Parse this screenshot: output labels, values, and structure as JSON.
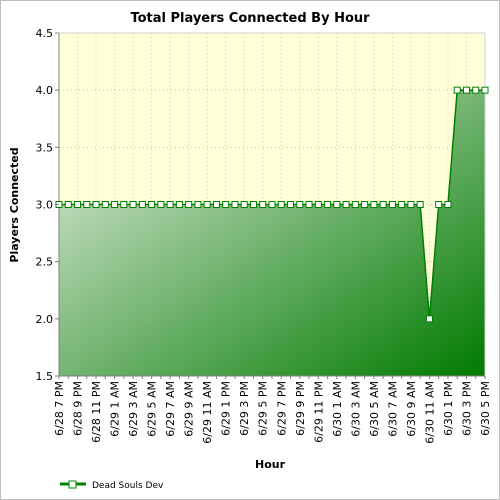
{
  "chart_data": {
    "type": "area",
    "title": "Total Players Connected By Hour",
    "xlabel": "Hour",
    "ylabel": "Players Connected",
    "ylim": [
      1.5,
      4.5
    ],
    "yticks": [
      "1.5",
      "2.0",
      "2.5",
      "3.0",
      "3.5",
      "4.0",
      "4.5"
    ],
    "x": [
      "6/28 7 PM",
      "6/28 8 PM",
      "6/28 9 PM",
      "6/28 10 PM",
      "6/28 11 PM",
      "6/29 12 AM",
      "6/29 1 AM",
      "6/29 2 AM",
      "6/29 3 AM",
      "6/29 4 AM",
      "6/29 5 AM",
      "6/29 6 AM",
      "6/29 7 AM",
      "6/29 8 AM",
      "6/29 9 AM",
      "6/29 10 AM",
      "6/29 11 AM",
      "6/29 12 PM",
      "6/29 1 PM",
      "6/29 2 PM",
      "6/29 3 PM",
      "6/29 4 PM",
      "6/29 5 PM",
      "6/29 6 PM",
      "6/29 7 PM",
      "6/29 8 PM",
      "6/29 9 PM",
      "6/29 10 PM",
      "6/29 11 PM",
      "6/30 12 AM",
      "6/30 1 AM",
      "6/30 2 AM",
      "6/30 3 AM",
      "6/30 4 AM",
      "6/30 5 AM",
      "6/30 6 AM",
      "6/30 7 AM",
      "6/30 8 AM",
      "6/30 9 AM",
      "6/30 10 AM",
      "6/30 11 AM",
      "6/30 12 PM",
      "6/30 1 PM",
      "6/30 2 PM",
      "6/30 3 PM",
      "6/30 4 PM",
      "6/30 5 PM"
    ],
    "xtick_labels": [
      "6/28 7 PM",
      "6/28 9 PM",
      "6/28 11 PM",
      "6/29 1 AM",
      "6/29 3 AM",
      "6/29 5 AM",
      "6/29 7 AM",
      "6/29 9 AM",
      "6/29 11 AM",
      "6/29 1 PM",
      "6/29 3 PM",
      "6/29 5 PM",
      "6/29 7 PM",
      "6/29 9 PM",
      "6/29 11 PM",
      "6/30 1 AM",
      "6/30 3 AM",
      "6/30 5 AM",
      "6/30 7 AM",
      "6/30 9 AM",
      "6/30 11 AM",
      "6/30 1 PM",
      "6/30 3 PM",
      "6/30 5 PM"
    ],
    "series": [
      {
        "name": "Dead Souls Dev",
        "color": "#008000",
        "values": [
          3,
          3,
          3,
          3,
          3,
          3,
          3,
          3,
          3,
          3,
          3,
          3,
          3,
          3,
          3,
          3,
          3,
          3,
          3,
          3,
          3,
          3,
          3,
          3,
          3,
          3,
          3,
          3,
          3,
          3,
          3,
          3,
          3,
          3,
          3,
          3,
          3,
          3,
          3,
          3,
          2,
          3,
          3,
          4,
          4,
          4,
          4
        ]
      }
    ],
    "grid": true,
    "legend": "bottom-left",
    "colors": {
      "plot_background": "#ffffd8",
      "grid": "#c8c8a0",
      "area_light": "#e8f0e4",
      "area_dark": "#007a00"
    }
  }
}
